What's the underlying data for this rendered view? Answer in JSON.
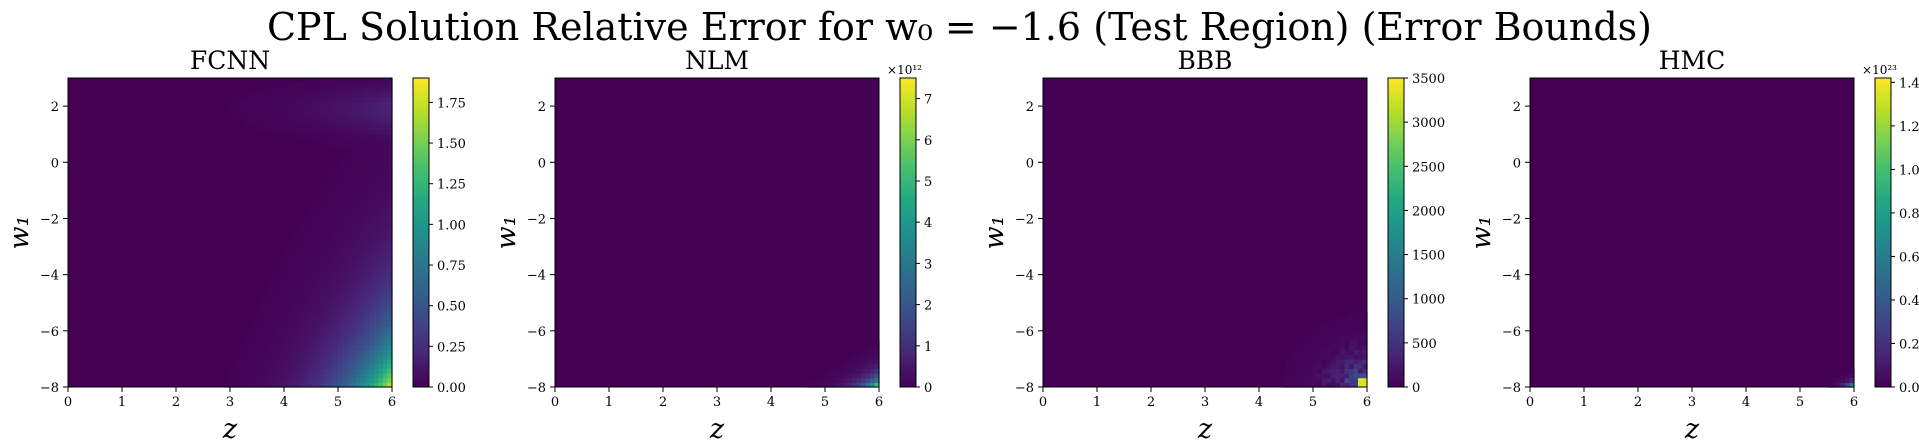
{
  "figure": {
    "title": "CPL Solution Relative Error for w₀ = −1.6 (Test Region) (Error Bounds)"
  },
  "chart_data": [
    {
      "type": "heatmap",
      "title": "FCNN",
      "xlabel": "z",
      "ylabel": "w₁",
      "xlim": [
        0,
        6
      ],
      "ylim": [
        -8,
        3
      ],
      "xticks": [
        "0",
        "1",
        "2",
        "3",
        "4",
        "5",
        "6"
      ],
      "yticks": [
        "−8",
        "−6",
        "−4",
        "−2",
        "0",
        "2"
      ],
      "colorbar": {
        "min": 0,
        "max": 1.9,
        "ticks": [
          "0.00",
          "0.25",
          "0.50",
          "0.75",
          "1.00",
          "1.25",
          "1.50",
          "1.75"
        ],
        "multiplier": ""
      },
      "pattern": "smooth ramp",
      "peak_at": {
        "z": 6,
        "w1": -8
      },
      "colormap": "viridis"
    },
    {
      "type": "heatmap",
      "title": "NLM",
      "xlabel": "z",
      "ylabel": "w₁",
      "xlim": [
        0,
        6
      ],
      "ylim": [
        -8,
        3
      ],
      "xticks": [
        "0",
        "1",
        "2",
        "3",
        "4",
        "5",
        "6"
      ],
      "yticks": [
        "−8",
        "−6",
        "−4",
        "−2",
        "0",
        "2"
      ],
      "colorbar": {
        "min": 0,
        "max": 7.5,
        "ticks": [
          "0",
          "1",
          "2",
          "3",
          "4",
          "5",
          "6",
          "7"
        ],
        "multiplier": "×10¹²"
      },
      "pattern": "corner spike",
      "peak_at": {
        "z": 6,
        "w1": -8
      },
      "colormap": "viridis"
    },
    {
      "type": "heatmap",
      "title": "BBB",
      "xlabel": "z",
      "ylabel": "w₁",
      "xlim": [
        0,
        6
      ],
      "ylim": [
        -8,
        3
      ],
      "xticks": [
        "0",
        "1",
        "2",
        "3",
        "4",
        "5",
        "6"
      ],
      "yticks": [
        "−8",
        "−6",
        "−4",
        "−2",
        "0",
        "2"
      ],
      "colorbar": {
        "min": 0,
        "max": 3500,
        "ticks": [
          "0",
          "500",
          "1000",
          "1500",
          "2000",
          "2500",
          "3000",
          "3500"
        ],
        "multiplier": ""
      },
      "pattern": "noisy corner",
      "peak_at": {
        "z": 6,
        "w1": -8
      },
      "colormap": "viridis"
    },
    {
      "type": "heatmap",
      "title": "HMC",
      "xlabel": "z",
      "ylabel": "w₁",
      "xlim": [
        0,
        6
      ],
      "ylim": [
        -8,
        3
      ],
      "xticks": [
        "0",
        "1",
        "2",
        "3",
        "4",
        "5",
        "6"
      ],
      "yticks": [
        "−8",
        "−6",
        "−4",
        "−2",
        "0",
        "2"
      ],
      "colorbar": {
        "min": 0,
        "max": 1.42,
        "ticks": [
          "0.0",
          "0.2",
          "0.4",
          "0.6",
          "0.8",
          "1.0",
          "1.2",
          "1.4"
        ],
        "multiplier": "×10²³"
      },
      "pattern": "tiny corner spike",
      "peak_at": {
        "z": 6,
        "w1": -8
      },
      "colormap": "viridis"
    }
  ]
}
